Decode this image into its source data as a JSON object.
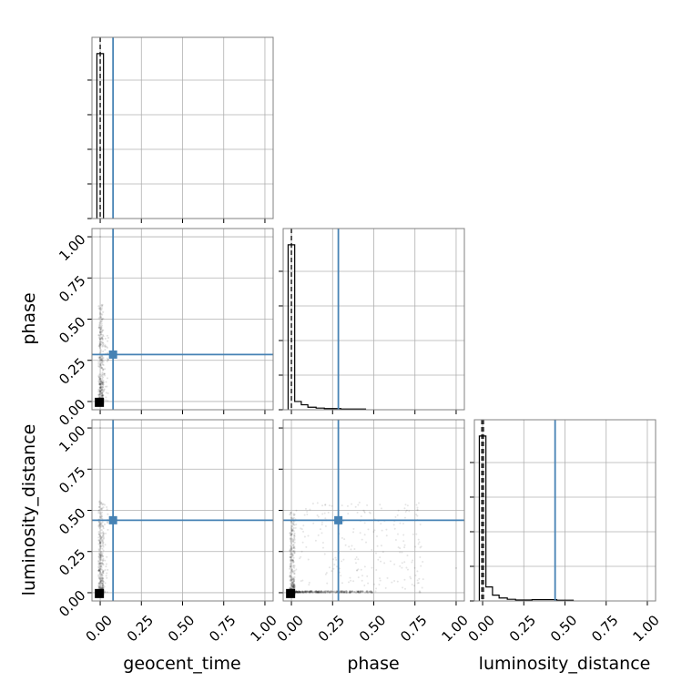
{
  "chart_data": {
    "type": "corner",
    "parameters": [
      "geocent_time",
      "phase",
      "luminosity_distance"
    ],
    "axis_range": [
      -0.05,
      1.05
    ],
    "tick_values": [
      0.0,
      0.25,
      0.5,
      0.75,
      1.0
    ],
    "tick_labels": [
      "0.00",
      "0.25",
      "0.50",
      "0.75",
      "1.00"
    ],
    "grid": true,
    "truths": [
      0.078,
      0.285,
      0.44
    ],
    "quantile_lines": {
      "geocent_time": [
        0.0
      ],
      "phase": [
        0.0
      ],
      "luminosity_distance": [
        -0.005,
        0.005
      ]
    },
    "histograms": {
      "geocent_time": {
        "bin_edges": [
          -0.02,
          0.02
        ],
        "density": [
          1.0
        ]
      },
      "phase": {
        "bin_edges": [
          -0.02,
          0.02,
          0.06,
          0.1,
          0.15,
          0.2,
          0.3,
          0.45
        ],
        "density": [
          1.0,
          0.05,
          0.03,
          0.015,
          0.01,
          0.007,
          0.004
        ]
      },
      "luminosity_distance": {
        "bin_edges": [
          -0.02,
          0.02,
          0.06,
          0.1,
          0.15,
          0.2,
          0.3,
          0.45,
          0.55
        ],
        "density": [
          1.0,
          0.085,
          0.035,
          0.018,
          0.01,
          0.006,
          0.008,
          0.004
        ]
      }
    },
    "colors": {
      "truth": "#4682b4",
      "samples": "#000000",
      "grid": "#b0b0b0",
      "frame": "#808080"
    }
  }
}
